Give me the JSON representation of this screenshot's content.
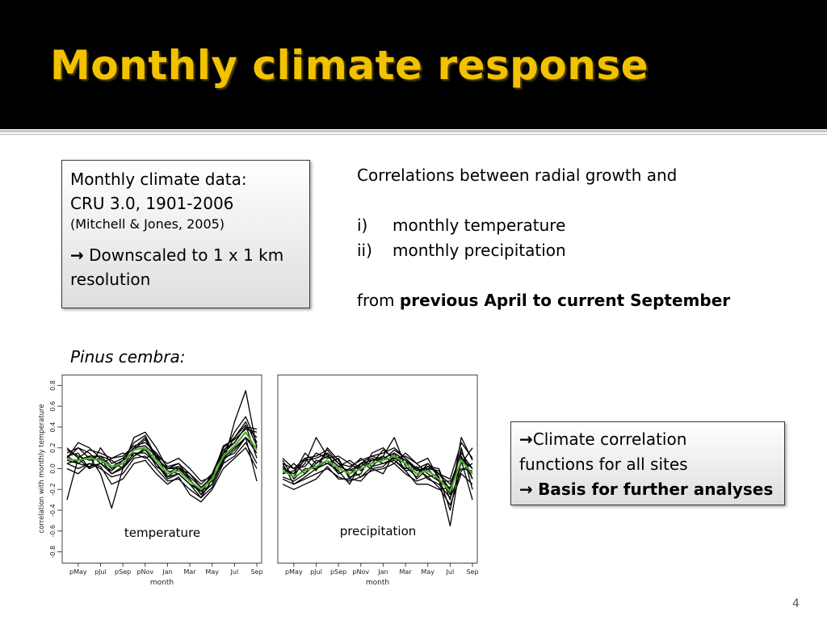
{
  "slide": {
    "title": "Monthly climate response",
    "page_number": "4"
  },
  "data_box": {
    "line1": "Monthly climate data:",
    "line2": "CRU 3.0, 1901-2006",
    "citation": "(Mitchell & Jones, 2005)",
    "arrow": "→",
    "downscale_text": "Downscaled to 1 x 1 km resolution"
  },
  "description": {
    "intro": "Correlations between radial growth and",
    "items": [
      {
        "num": "i)",
        "text": "monthly temperature"
      },
      {
        "num": "ii)",
        "text": "monthly precipitation"
      }
    ],
    "from_prefix": "from ",
    "from_bold": "previous April to current September"
  },
  "species_label": "Pinus cembra:",
  "result_box": {
    "arrow": "→",
    "line1": "Climate correlation",
    "line2": "functions for all sites",
    "line3": "Basis for further analyses"
  },
  "chart_data": [
    {
      "type": "line",
      "panel_label": "temperature",
      "xlabel": "month",
      "ylabel": "correlation with monthly temperature",
      "x_ticks": [
        "pMay",
        "pJul",
        "pSep",
        "pNov",
        "Jan",
        "Mar",
        "May",
        "Jul",
        "Sep"
      ],
      "y_ticks": [
        "-0.8",
        "-0.6",
        "-0.4",
        "-0.2",
        "0.0",
        "0.2",
        "0.4",
        "0.6",
        "0.8"
      ],
      "ylim": [
        -0.85,
        0.85
      ],
      "months": [
        "pApr",
        "pMay",
        "pJun",
        "pJul",
        "pAug",
        "pSep",
        "pOct",
        "pNov",
        "pDec",
        "Jan",
        "Feb",
        "Mar",
        "Apr",
        "May",
        "Jun",
        "Jul",
        "Aug",
        "Sep"
      ],
      "mean_series": {
        "name": "mean",
        "color": "#4caf2a",
        "values": [
          0.09,
          0.08,
          0.1,
          0.08,
          0.02,
          0.05,
          0.18,
          0.2,
          0.08,
          -0.05,
          -0.02,
          -0.12,
          -0.2,
          -0.1,
          0.12,
          0.22,
          0.35,
          0.18
        ]
      },
      "site_series_color": "#000000",
      "site_series": [
        [
          0.15,
          0.2,
          0.1,
          0.12,
          0.02,
          0.08,
          0.25,
          0.32,
          0.1,
          0.0,
          0.05,
          -0.1,
          -0.25,
          -0.05,
          0.2,
          0.3,
          0.45,
          0.22
        ],
        [
          0.0,
          -0.05,
          0.05,
          0.0,
          -0.08,
          -0.05,
          0.1,
          0.12,
          0.0,
          -0.12,
          -0.1,
          -0.2,
          -0.28,
          -0.18,
          0.05,
          0.12,
          0.25,
          0.05
        ],
        [
          0.2,
          0.1,
          0.18,
          0.15,
          0.1,
          0.12,
          0.22,
          0.25,
          0.15,
          0.02,
          0.05,
          -0.05,
          -0.15,
          -0.05,
          0.18,
          0.25,
          0.4,
          0.3
        ],
        [
          -0.3,
          0.1,
          0.0,
          0.05,
          -0.05,
          0.0,
          0.15,
          0.15,
          0.05,
          -0.08,
          -0.05,
          -0.15,
          -0.22,
          -0.15,
          0.08,
          0.18,
          0.3,
          0.15
        ],
        [
          0.1,
          0.25,
          0.2,
          0.1,
          -0.05,
          0.02,
          0.3,
          0.35,
          0.2,
          0.0,
          0.02,
          -0.08,
          -0.18,
          -0.12,
          0.15,
          0.35,
          0.5,
          0.25
        ],
        [
          0.05,
          0.0,
          0.05,
          0.02,
          -0.15,
          -0.1,
          0.05,
          0.08,
          -0.05,
          -0.15,
          -0.08,
          -0.25,
          -0.32,
          -0.2,
          0.0,
          0.1,
          0.2,
          0.0
        ],
        [
          0.12,
          0.15,
          0.0,
          0.2,
          0.05,
          0.1,
          0.2,
          0.22,
          0.12,
          0.05,
          0.1,
          0.0,
          -0.12,
          -0.08,
          0.22,
          0.28,
          0.38,
          0.35
        ],
        [
          0.08,
          0.05,
          0.12,
          -0.05,
          -0.38,
          0.0,
          0.12,
          0.18,
          0.05,
          -0.1,
          -0.05,
          -0.15,
          -0.2,
          -0.1,
          0.05,
          0.45,
          0.75,
          0.2
        ],
        [
          0.18,
          0.12,
          0.08,
          0.1,
          0.0,
          0.05,
          0.18,
          0.28,
          0.1,
          0.0,
          0.0,
          -0.1,
          -0.25,
          -0.15,
          0.1,
          0.2,
          0.3,
          -0.12
        ],
        [
          0.1,
          0.2,
          0.15,
          0.05,
          0.1,
          0.15,
          0.12,
          0.2,
          0.02,
          -0.05,
          0.02,
          -0.12,
          -0.22,
          -0.05,
          0.15,
          0.25,
          0.4,
          0.38
        ],
        [
          0.05,
          0.08,
          0.12,
          0.12,
          0.08,
          0.0,
          0.2,
          0.3,
          0.12,
          -0.02,
          -0.05,
          -0.15,
          -0.28,
          -0.1,
          0.12,
          0.3,
          0.42,
          0.1
        ],
        [
          0.12,
          0.05,
          0.02,
          0.05,
          -0.02,
          0.08,
          0.15,
          0.1,
          0.15,
          -0.08,
          0.0,
          -0.05,
          -0.18,
          -0.08,
          0.1,
          0.15,
          0.3,
          0.2
        ]
      ]
    },
    {
      "type": "line",
      "panel_label": "precipitation",
      "xlabel": "month",
      "ylabel": "",
      "x_ticks": [
        "pMay",
        "pJul",
        "pSep",
        "pNov",
        "Jan",
        "Mar",
        "May",
        "Jul",
        "Sep"
      ],
      "y_ticks": [],
      "ylim": [
        -0.85,
        0.85
      ],
      "months": [
        "pApr",
        "pMay",
        "pJun",
        "pJul",
        "pAug",
        "pSep",
        "pOct",
        "pNov",
        "pDec",
        "Jan",
        "Feb",
        "Mar",
        "Apr",
        "May",
        "Jun",
        "Jul",
        "Aug",
        "Sep"
      ],
      "mean_series": {
        "name": "mean",
        "color": "#4caf2a",
        "values": [
          -0.02,
          -0.08,
          -0.02,
          0.02,
          0.08,
          0.0,
          -0.05,
          0.0,
          0.05,
          0.08,
          0.12,
          0.05,
          -0.05,
          -0.02,
          -0.1,
          -0.22,
          0.08,
          -0.05
        ]
      },
      "site_series_color": "#000000",
      "site_series": [
        [
          0.05,
          0.0,
          0.1,
          0.12,
          0.18,
          0.05,
          0.02,
          0.08,
          0.12,
          0.15,
          0.2,
          0.1,
          0.0,
          0.05,
          -0.05,
          -0.1,
          0.25,
          0.1
        ],
        [
          -0.1,
          -0.15,
          -0.1,
          -0.05,
          0.0,
          -0.08,
          -0.12,
          -0.08,
          -0.02,
          0.0,
          0.05,
          -0.05,
          -0.12,
          -0.08,
          -0.18,
          -0.35,
          -0.05,
          -0.15
        ],
        [
          0.0,
          -0.05,
          0.05,
          0.3,
          0.12,
          0.02,
          -0.02,
          0.05,
          0.08,
          0.1,
          0.15,
          0.08,
          -0.02,
          0.02,
          -0.05,
          -0.15,
          0.15,
          0.0
        ],
        [
          0.08,
          -0.1,
          0.0,
          0.0,
          0.05,
          0.1,
          -0.1,
          0.02,
          0.1,
          0.05,
          0.1,
          0.12,
          0.05,
          -0.05,
          -0.12,
          -0.2,
          0.05,
          0.2
        ],
        [
          -0.05,
          0.05,
          -0.05,
          0.05,
          0.15,
          -0.05,
          0.0,
          0.1,
          0.02,
          0.12,
          0.3,
          0.02,
          -0.08,
          0.05,
          -0.08,
          -0.4,
          0.12,
          -0.1
        ],
        [
          0.02,
          -0.08,
          0.1,
          -0.02,
          0.2,
          0.08,
          -0.08,
          -0.05,
          0.15,
          0.2,
          0.08,
          0.0,
          0.02,
          -0.1,
          -0.15,
          -0.28,
          -0.02,
          0.05
        ],
        [
          -0.08,
          -0.12,
          -0.05,
          0.08,
          0.05,
          -0.02,
          -0.15,
          0.05,
          0.0,
          0.02,
          0.12,
          0.08,
          -0.1,
          0.0,
          -0.02,
          -0.25,
          0.2,
          -0.2
        ],
        [
          0.1,
          0.0,
          0.02,
          0.15,
          0.1,
          0.12,
          0.05,
          -0.02,
          0.08,
          0.12,
          0.05,
          0.15,
          0.05,
          0.1,
          -0.1,
          -0.55,
          0.1,
          0.0
        ],
        [
          -0.15,
          -0.2,
          -0.15,
          -0.1,
          0.02,
          -0.1,
          -0.1,
          -0.12,
          0.0,
          -0.05,
          0.15,
          -0.02,
          -0.15,
          -0.15,
          -0.2,
          -0.18,
          0.08,
          -0.3
        ],
        [
          0.0,
          -0.05,
          0.15,
          0.05,
          0.12,
          0.02,
          0.08,
          0.0,
          0.05,
          0.18,
          0.1,
          0.05,
          -0.05,
          0.02,
          0.0,
          -0.3,
          0.3,
          0.08
        ],
        [
          -0.05,
          -0.02,
          0.08,
          0.1,
          0.15,
          0.05,
          -0.05,
          0.05,
          0.12,
          0.08,
          0.18,
          0.1,
          -0.02,
          0.0,
          -0.12,
          -0.12,
          0.0,
          -0.02
        ],
        [
          0.05,
          -0.15,
          -0.08,
          0.0,
          0.08,
          -0.05,
          0.0,
          -0.08,
          0.02,
          0.05,
          0.08,
          -0.02,
          0.0,
          -0.08,
          -0.05,
          -0.2,
          0.18,
          -0.1
        ]
      ]
    }
  ]
}
